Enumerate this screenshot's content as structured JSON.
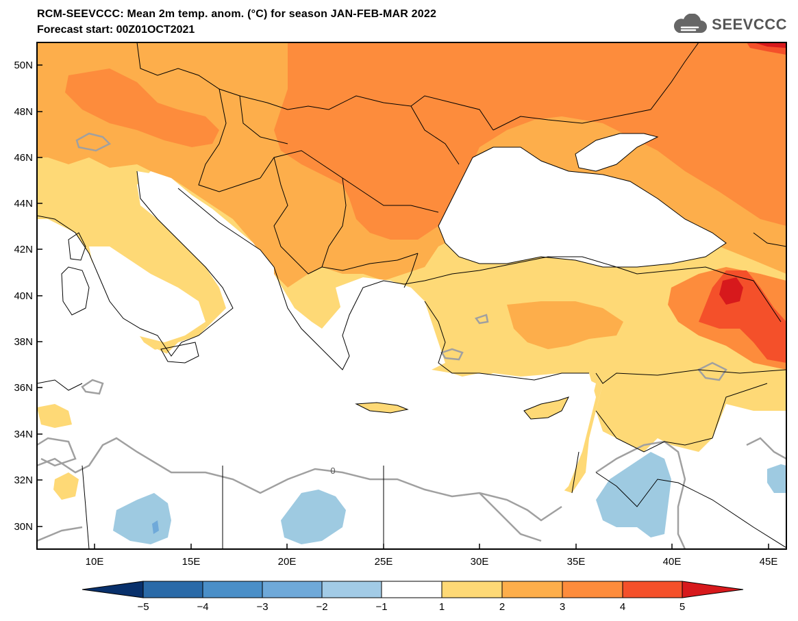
{
  "header": {
    "title": "RCM-SEEVCCC: Mean 2m temp. anom. (°C) for season JAN-FEB-MAR 2022",
    "subtitle": "Forecast start: 00Z01OCT2021",
    "logo_text": "SEEVCCC",
    "logo_icon": "cloud-icon"
  },
  "map": {
    "lat_labels": [
      "50N",
      "48N",
      "46N",
      "44N",
      "42N",
      "40N",
      "38N",
      "36N",
      "34N",
      "32N",
      "30N"
    ],
    "lon_labels": [
      "10E",
      "15E",
      "20E",
      "25E",
      "30E",
      "35E",
      "40E",
      "45E"
    ],
    "contour_label": "0",
    "lon_range": [
      7,
      46
    ],
    "lat_range": [
      29,
      51
    ]
  },
  "colorbar": {
    "tick_labels": [
      "−5",
      "−4",
      "−3",
      "−2",
      "−1",
      "1",
      "2",
      "3",
      "4",
      "5"
    ],
    "colors": [
      "#08306b",
      "#2a6aa8",
      "#4a8fc8",
      "#6fa9d9",
      "#a2cbe6",
      "#ffffff",
      "#fed976",
      "#fdae4b",
      "#fd8c3c",
      "#f4502a",
      "#d7191c"
    ]
  },
  "colors": {
    "sea": "#ffffff",
    "anom_1_2": "#fed976",
    "anom_2_3": "#fdae4b",
    "anom_3_4": "#fd8c3c",
    "anom_4_5": "#f4502a",
    "anom_gt5": "#d7191c",
    "anom_neg": "#9ecae1",
    "contour": "#a0a0a0"
  }
}
